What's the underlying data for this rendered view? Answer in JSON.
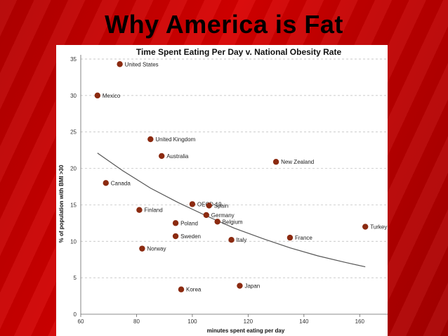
{
  "slide": {
    "title": "Why America is Fat"
  },
  "chart_data": {
    "type": "scatter",
    "title": "Time Spent Eating Per Day v. National Obesity Rate",
    "xlabel": "minutes spent eating per day",
    "ylabel": "% of population with BMI >30",
    "xlim": [
      60,
      170
    ],
    "ylim": [
      0,
      35
    ],
    "xticks": [
      60,
      80,
      100,
      120,
      140,
      160
    ],
    "yticks": [
      0,
      5,
      10,
      15,
      20,
      25,
      30,
      35
    ],
    "grid": true,
    "marker_color": "#8b2a10",
    "trend_color": "#555555",
    "trend": [
      {
        "x": 66,
        "y": 22.1
      },
      {
        "x": 75,
        "y": 19.7
      },
      {
        "x": 85,
        "y": 17.3
      },
      {
        "x": 95,
        "y": 15.3
      },
      {
        "x": 105,
        "y": 13.5
      },
      {
        "x": 115,
        "y": 11.8
      },
      {
        "x": 125,
        "y": 10.4
      },
      {
        "x": 135,
        "y": 9.1
      },
      {
        "x": 145,
        "y": 8.0
      },
      {
        "x": 155,
        "y": 7.1
      },
      {
        "x": 162,
        "y": 6.5
      }
    ],
    "points": [
      {
        "label": "United States",
        "x": 74,
        "y": 34.3
      },
      {
        "label": "Mexico",
        "x": 66,
        "y": 30.0
      },
      {
        "label": "United Kingdom",
        "x": 85,
        "y": 24.0
      },
      {
        "label": "Australia",
        "x": 89,
        "y": 21.7
      },
      {
        "label": "New Zealand",
        "x": 130,
        "y": 20.9
      },
      {
        "label": "Canada",
        "x": 69,
        "y": 18.0
      },
      {
        "label": "OECD-19",
        "x": 100,
        "y": 15.1
      },
      {
        "label": "Spain",
        "x": 106,
        "y": 14.9
      },
      {
        "label": "Finland",
        "x": 81,
        "y": 14.3
      },
      {
        "label": "Germany",
        "x": 105,
        "y": 13.6
      },
      {
        "label": "Belgium",
        "x": 109,
        "y": 12.7
      },
      {
        "label": "Poland",
        "x": 94,
        "y": 12.5
      },
      {
        "label": "Turkey",
        "x": 162,
        "y": 12.0
      },
      {
        "label": "Sweden",
        "x": 94,
        "y": 10.7
      },
      {
        "label": "France",
        "x": 135,
        "y": 10.5
      },
      {
        "label": "Italy",
        "x": 114,
        "y": 10.2
      },
      {
        "label": "Norway",
        "x": 82,
        "y": 9.0
      },
      {
        "label": "Japan",
        "x": 117,
        "y": 3.9
      },
      {
        "label": "Korea",
        "x": 96,
        "y": 3.4
      }
    ]
  }
}
